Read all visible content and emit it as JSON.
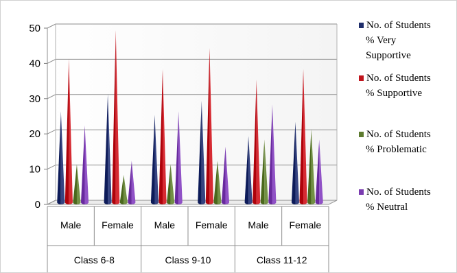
{
  "chart_data": {
    "type": "bar",
    "bar_shape": "cone",
    "title": "",
    "xlabel": "",
    "ylabel": "",
    "ylim": [
      0,
      50
    ],
    "yticks": [
      0,
      10,
      20,
      30,
      40,
      50
    ],
    "grid": true,
    "legend_position": "right",
    "categories": [
      "Male",
      "Female",
      "Male",
      "Female",
      "Male",
      "Female"
    ],
    "groups": [
      {
        "label": "Class 6-8",
        "categories": [
          "Male",
          "Female"
        ]
      },
      {
        "label": "Class 9-10",
        "categories": [
          "Male",
          "Female"
        ]
      },
      {
        "label": "Class 11-12",
        "categories": [
          "Male",
          "Female"
        ]
      }
    ],
    "series": [
      {
        "name_lines": [
          "No. of Students",
          "% Very",
          "Supportive"
        ],
        "color": "#1f2d6b",
        "values": [
          26,
          31,
          25,
          29,
          19,
          23
        ]
      },
      {
        "name_lines": [
          "No. of Students",
          "% Supportive"
        ],
        "color": "#c0141c",
        "values": [
          41,
          49,
          38,
          44,
          35,
          38
        ]
      },
      {
        "name_lines": [
          "No. of Students",
          "% Problematic"
        ],
        "color": "#5c7a2e",
        "values": [
          11,
          8,
          11,
          12,
          18,
          21
        ]
      },
      {
        "name_lines": [
          "No. of Students",
          "% Neutral"
        ],
        "color": "#7a3bb0",
        "values": [
          22,
          12,
          26,
          16,
          28,
          18
        ]
      }
    ]
  }
}
